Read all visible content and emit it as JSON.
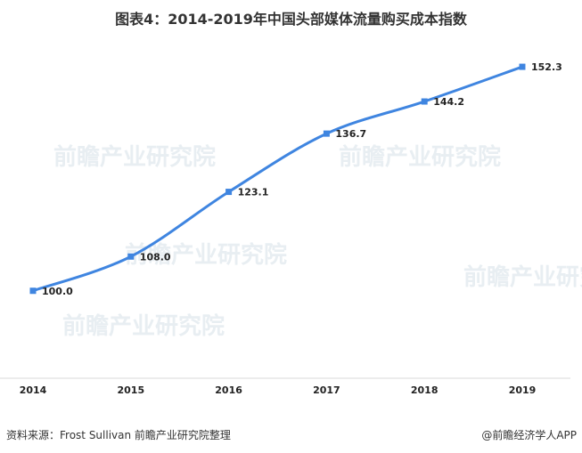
{
  "chart_data": {
    "type": "line",
    "title": "图表4：2014-2019年中国头部媒体流量购买成本指数",
    "categories": [
      "2014",
      "2015",
      "2016",
      "2017",
      "2018",
      "2019"
    ],
    "values": [
      100.0,
      108.0,
      123.1,
      136.7,
      144.2,
      152.3
    ],
    "value_labels": [
      "100.0",
      "108.0",
      "123.1",
      "136.7",
      "144.2",
      "152.3"
    ],
    "xlabel": "",
    "ylabel": "",
    "ylim": [
      80,
      160
    ],
    "grid": false,
    "smooth": true,
    "line_color": "#3f85e0",
    "marker": "square"
  },
  "footer": {
    "source": "资料来源：Frost Sullivan 前瞻产业研究院整理",
    "brand": "@前瞻经济学人APP"
  },
  "watermark": "前瞻产业研究院"
}
